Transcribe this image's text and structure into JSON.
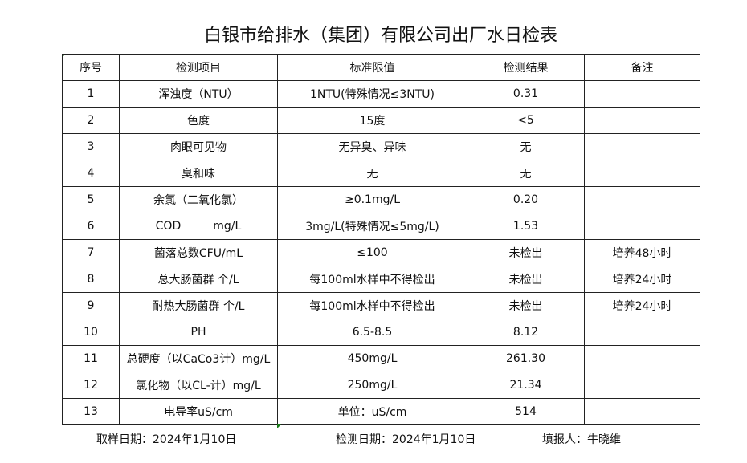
{
  "title": "白银市给排水（集团）有限公司出厂水日检表",
  "headers": [
    "序号",
    "检测项目",
    "标准限值",
    "检测结果",
    "备注"
  ],
  "rows": [
    [
      "1",
      "浑浊度（NTU）",
      "1NTU(特殊情况≤3NTU)",
      "0.31",
      ""
    ],
    [
      "2",
      "色度",
      "15度",
      "<5",
      ""
    ],
    [
      "3",
      "肉眼可见物",
      "无异臭、异味",
      "无",
      ""
    ],
    [
      "4",
      "臭和味",
      "无",
      "无",
      ""
    ],
    [
      "5",
      "余氯（二氧化氯）",
      "≥0.1mg/L",
      "0.20",
      ""
    ],
    [
      "6",
      "COD         mg/L",
      "3mg/L(特殊情况≤5mg/L)",
      "1.53",
      ""
    ],
    [
      "7",
      "菌落总数CFU/mL",
      "≤100",
      "未检出",
      "培养48小时"
    ],
    [
      "8",
      "总大肠菌群 个/L",
      "每100ml水样中不得检出",
      "未检出",
      "培养24小时"
    ],
    [
      "9",
      "耐热大肠菌群 个/L",
      "每100ml水样中不得检出",
      "未检出",
      "培养24小时"
    ],
    [
      "10",
      "PH",
      "6.5-8.5",
      "8.12",
      ""
    ],
    [
      "11",
      "总硬度（以CaCo3计）mg/L",
      "450mg/L",
      "261.30",
      ""
    ],
    [
      "12",
      "氯化物（以CL-计）mg/L",
      "250mg/L",
      "21.34",
      ""
    ],
    [
      "13",
      "电导率uS/cm",
      "单位：uS/cm",
      "514",
      ""
    ]
  ],
  "footer": {
    "sampling_date": "取样日期：2024年1月10日",
    "test_date": "检测日期：2024年1月10日",
    "reporter": "填报人：牛晓维"
  }
}
